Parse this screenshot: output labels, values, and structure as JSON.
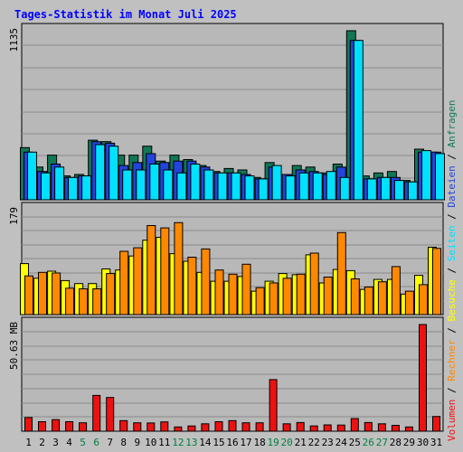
{
  "chart_data": {
    "type": "bar",
    "title": "Tages-Statistik im Monat Juli 2025",
    "colors": {
      "title": "#0000ff",
      "anfragen": "#117755",
      "dateien": "#2244dd",
      "seiten": "#00e0ff",
      "besuche": "#ffff00",
      "rechner": "#ff8800",
      "volumen": "#ee1111",
      "weekend_label": "#008040",
      "background": "#c0c0c0",
      "plot": "#b8b8b8"
    },
    "days": [
      "1",
      "2",
      "3",
      "4",
      "5",
      "6",
      "7",
      "8",
      "9",
      "10",
      "11",
      "12",
      "13",
      "14",
      "15",
      "16",
      "17",
      "18",
      "19",
      "20",
      "21",
      "22",
      "23",
      "24",
      "25",
      "26",
      "27",
      "28",
      "29",
      "30",
      "31"
    ],
    "weekend_days": [
      "5",
      "6",
      "12",
      "13",
      "19",
      "20",
      "26",
      "27"
    ],
    "panels": [
      {
        "axis_max_label": "1135",
        "ylim": [
          0,
          1135
        ],
        "series": [
          {
            "name": "Anfragen",
            "color": "anfragen",
            "values": [
              350,
              220,
              300,
              160,
              170,
              400,
              390,
              300,
              300,
              360,
              260,
              300,
              270,
              230,
              190,
              210,
              200,
              150,
              250,
              170,
              230,
              220,
              180,
              240,
              1135,
              160,
              180,
              190,
              130,
              340,
              320
            ]
          },
          {
            "name": "Dateien",
            "color": "dateien",
            "values": [
              320,
              190,
              240,
              150,
              160,
              390,
              380,
              230,
              250,
              310,
              250,
              260,
              260,
              220,
              180,
              180,
              170,
              140,
              220,
              170,
              200,
              190,
              170,
              220,
              1070,
              140,
              150,
              150,
              120,
              320,
              320
            ]
          },
          {
            "name": "Seiten",
            "color": "seiten",
            "values": [
              320,
              180,
              220,
              150,
              160,
              370,
              360,
              200,
              200,
              240,
              200,
              180,
              240,
              200,
              180,
              180,
              160,
              140,
              230,
              160,
              180,
              180,
              190,
              150,
              1070,
              140,
              150,
              130,
              120,
              330,
              310
            ]
          }
        ]
      },
      {
        "axis_max_label": "179",
        "ylim": [
          0,
          179
        ],
        "series": [
          {
            "name": "Besuche",
            "color": "besuche",
            "values": [
              87,
              62,
              74,
              58,
              53,
              53,
              78,
              76,
              100,
              127,
              132,
              104,
              91,
              72,
              57,
              57,
              65,
              40,
              57,
              70,
              68,
              102,
              54,
              77,
              75,
              43,
              60,
              60,
              35,
              67,
              115
            ]
          },
          {
            "name": "Rechner",
            "color": "rechner",
            "values": [
              66,
              72,
              71,
              45,
              44,
              44,
              70,
              108,
              114,
              152,
              148,
              157,
              98,
              112,
              76,
              69,
              86,
              46,
              54,
              62,
              69,
              105,
              64,
              140,
              61,
              47,
              56,
              82,
              40,
              51,
              113
            ]
          }
        ]
      },
      {
        "axis_max_label": "50.63 MB",
        "ylim": [
          0,
          50.63
        ],
        "series": [
          {
            "name": "Volumen",
            "color": "volumen",
            "values": [
              6.5,
              4.5,
              5.5,
              4.5,
              4,
              17,
              16,
              5,
              4.0,
              3.9,
              4.4,
              2,
              2.5,
              3.5,
              4.5,
              5,
              4,
              4,
              24.5,
              3.5,
              4.1,
              2.5,
              3,
              2.9,
              6,
              4.1,
              3.5,
              2.8,
              2,
              50.63,
              7
            ]
          }
        ]
      }
    ],
    "legend": [
      {
        "text": "Volumen",
        "color": "volumen"
      },
      {
        "text": " / ",
        "color": "#000000"
      },
      {
        "text": "Rechner",
        "color": "rechner"
      },
      {
        "text": " / ",
        "color": "#000000"
      },
      {
        "text": "Besuche",
        "color": "besuche"
      },
      {
        "text": " / ",
        "color": "#000000"
      },
      {
        "text": "Seiten",
        "color": "seiten"
      },
      {
        "text": " / ",
        "color": "#000000"
      },
      {
        "text": "Dateien",
        "color": "dateien"
      },
      {
        "text": " / ",
        "color": "#000000"
      },
      {
        "text": "Anfragen",
        "color": "anfragen"
      }
    ],
    "legend_placement": "right-vertical",
    "grid": true
  }
}
